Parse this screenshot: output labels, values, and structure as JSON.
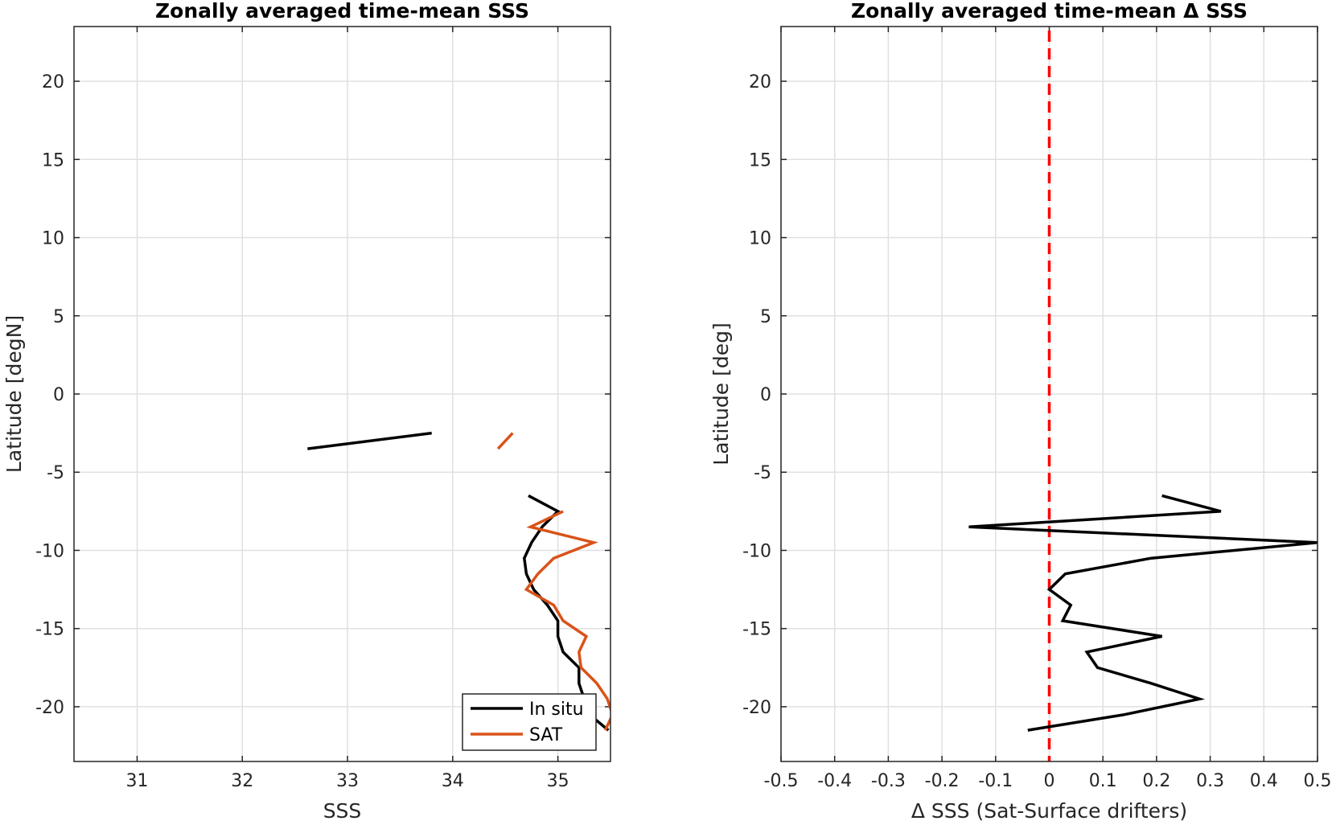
{
  "chart_data": [
    {
      "type": "line",
      "title": "Zonally averaged time-mean SSS",
      "xlabel": "SSS",
      "ylabel": "Latitude [degN]",
      "xlim": [
        30.4,
        35.5
      ],
      "ylim": [
        -23.5,
        23.5
      ],
      "xticks": [
        "31",
        "32",
        "33",
        "34",
        "35"
      ],
      "yticks": [
        "20",
        "15",
        "10",
        "5",
        "0",
        "-5",
        "-10",
        "-15",
        "-20"
      ],
      "grid": true,
      "legend_position": "bottom-right",
      "series": [
        {
          "name": "In situ",
          "color": "#000000",
          "segments": [
            [
              [
                32.62,
                -3.5
              ],
              [
                33.8,
                -2.5
              ]
            ],
            [
              [
                34.72,
                -6.5
              ],
              [
                35.0,
                -7.5
              ],
              [
                34.85,
                -8.5
              ],
              [
                34.75,
                -9.5
              ],
              [
                34.68,
                -10.5
              ],
              [
                34.7,
                -11.5
              ],
              [
                34.77,
                -12.5
              ],
              [
                34.9,
                -13.5
              ],
              [
                35.0,
                -14.5
              ],
              [
                35.0,
                -15.5
              ],
              [
                35.05,
                -16.5
              ],
              [
                35.2,
                -17.5
              ],
              [
                35.2,
                -18.5
              ],
              [
                35.25,
                -19.5
              ],
              [
                35.3,
                -20.5
              ],
              [
                35.48,
                -21.5
              ]
            ]
          ]
        },
        {
          "name": "SAT",
          "color": "#d95319",
          "segments": [
            [
              [
                34.43,
                -3.5
              ],
              [
                34.57,
                -2.5
              ]
            ],
            [
              [
                35.05,
                -7.5
              ],
              [
                34.74,
                -8.5
              ],
              [
                35.34,
                -9.5
              ],
              [
                34.96,
                -10.5
              ],
              [
                34.81,
                -11.5
              ],
              [
                34.7,
                -12.5
              ],
              [
                34.96,
                -13.5
              ],
              [
                35.05,
                -14.5
              ],
              [
                35.27,
                -15.5
              ],
              [
                35.2,
                -16.5
              ],
              [
                35.22,
                -17.5
              ],
              [
                35.37,
                -18.5
              ],
              [
                35.47,
                -19.5
              ],
              [
                35.52,
                -20.5
              ],
              [
                35.45,
                -21.5
              ]
            ]
          ]
        }
      ]
    },
    {
      "type": "line",
      "title": "Zonally averaged time-mean Δ SSS",
      "xlabel": "Δ SSS (Sat-Surface drifters)",
      "ylabel": "Latitude [deg]",
      "xlim": [
        -0.5,
        0.5
      ],
      "ylim": [
        -23.5,
        23.5
      ],
      "xticks": [
        "-0.5",
        "-0.4",
        "-0.3",
        "-0.2",
        "-0.1",
        "0",
        "0.1",
        "0.2",
        "0.3",
        "0.4",
        "0.5"
      ],
      "yticks": [
        "20",
        "15",
        "10",
        "5",
        "0",
        "-5",
        "-10",
        "-15",
        "-20"
      ],
      "grid": true,
      "reference_line": {
        "x": 0,
        "color": "#ff0000",
        "style": "dashed"
      },
      "series": [
        {
          "color": "#000000",
          "segments": [
            [
              [
                0.21,
                -6.5
              ],
              [
                0.32,
                -7.5
              ],
              [
                -0.15,
                -8.5
              ],
              [
                0.5,
                -9.5
              ],
              [
                0.19,
                -10.5
              ],
              [
                0.03,
                -11.5
              ],
              [
                0.0,
                -12.5
              ],
              [
                0.04,
                -13.5
              ],
              [
                0.025,
                -14.5
              ],
              [
                0.21,
                -15.5
              ],
              [
                0.07,
                -16.5
              ],
              [
                0.09,
                -17.5
              ],
              [
                0.19,
                -18.5
              ],
              [
                0.28,
                -19.5
              ],
              [
                0.14,
                -20.5
              ],
              [
                -0.04,
                -21.5
              ]
            ]
          ]
        }
      ]
    }
  ]
}
